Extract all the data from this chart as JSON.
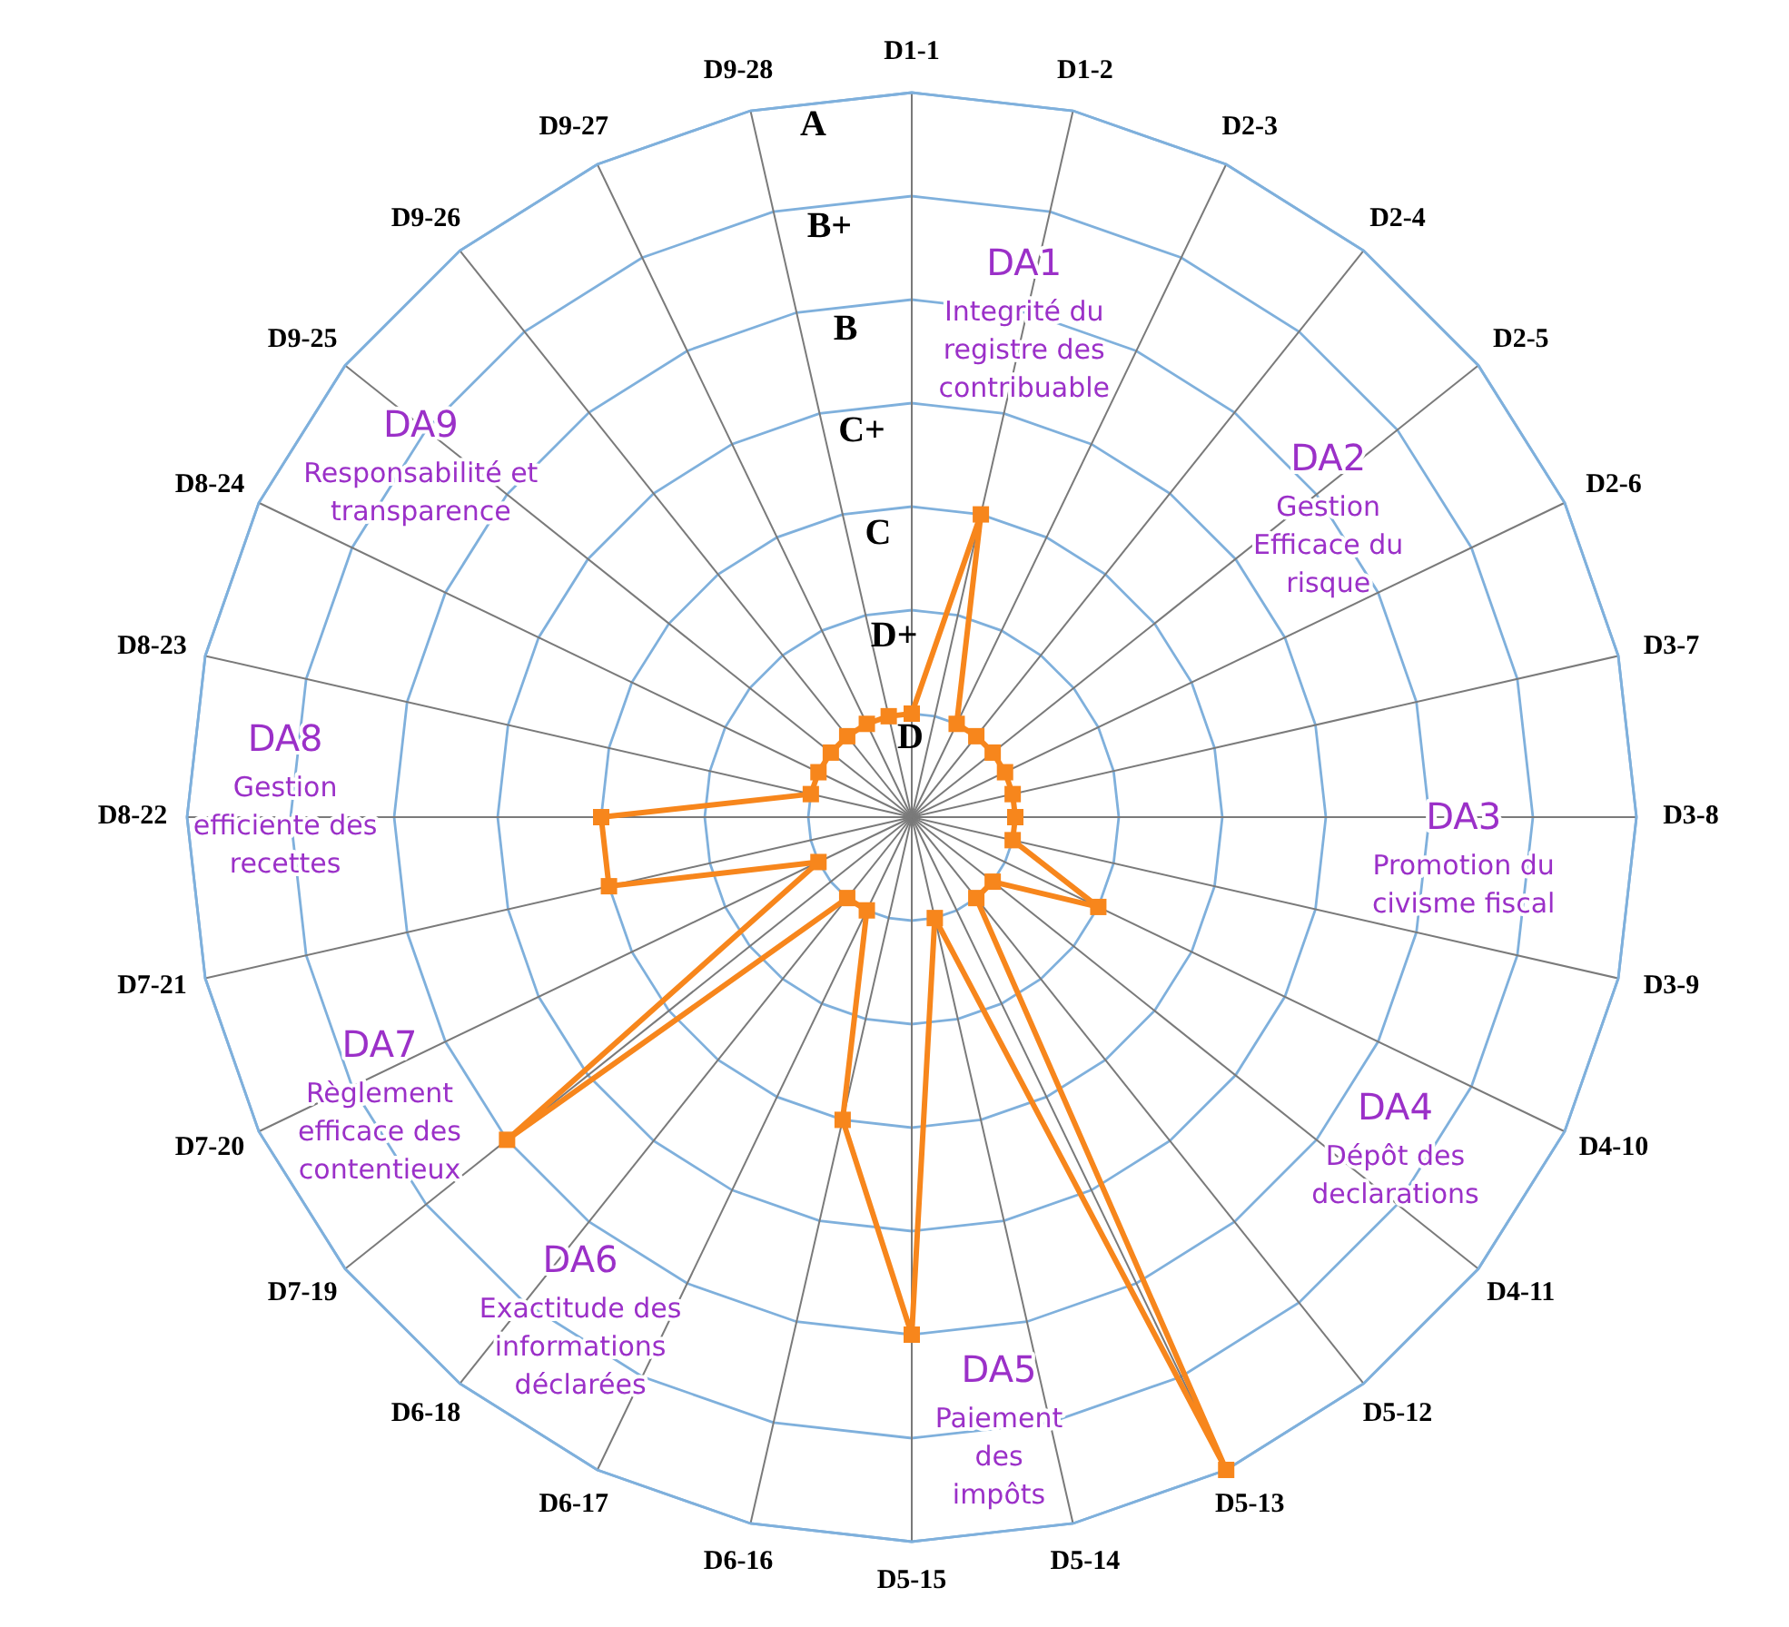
{
  "chart_data": {
    "type": "radar",
    "categories": [
      "D1-1",
      "D1-2",
      "D2-3",
      "D2-4",
      "D2-5",
      "D2-6",
      "D3-7",
      "D3-8",
      "D3-9",
      "D4-10",
      "D4-11",
      "D5-12",
      "D5-13",
      "D5-14",
      "D5-15",
      "D6-16",
      "D6-17",
      "D6-18",
      "D7-19",
      "D7-20",
      "D7-21",
      "D8-22",
      "D8-23",
      "D8-24",
      "D9-25",
      "D9-26",
      "D9-27",
      "D9-28"
    ],
    "series": [
      {
        "color": "#f7861c",
        "values": [
          1,
          3,
          1,
          1,
          1,
          1,
          1,
          1,
          1,
          2,
          1,
          1,
          7,
          1,
          5,
          3,
          1,
          1,
          5,
          1,
          3,
          3,
          1,
          1,
          1,
          1,
          1,
          1
        ]
      }
    ],
    "ylim": [
      0,
      7
    ],
    "yticks": [
      {
        "value": 1,
        "label": "D"
      },
      {
        "value": 2,
        "label": "D+"
      },
      {
        "value": 3,
        "label": "C"
      },
      {
        "value": 4,
        "label": "C+"
      },
      {
        "value": 5,
        "label": "B"
      },
      {
        "value": 6,
        "label": "B+"
      },
      {
        "value": 7,
        "label": "A"
      }
    ],
    "grid": true,
    "marker": "square",
    "annotations": [
      "DA1\nIntegrité du\nregistre des\ncontribuable",
      "DA2\nGestion\nEfficace du\nrisque",
      "DA3\nPromotion du\ncivisme fiscal",
      "DA4\nDépôt des\ndeclarations",
      "DA5\nPaiement\ndes\nimpôts",
      "DA6\nExactitude des\ninformations\ndéclarées",
      "DA7\nRèglement\nefficace des\ncontentieux",
      "DA8\nGestion\nefficiente des\nrecettes",
      "DA9\nResponsabilité et\ntransparence"
    ]
  }
}
